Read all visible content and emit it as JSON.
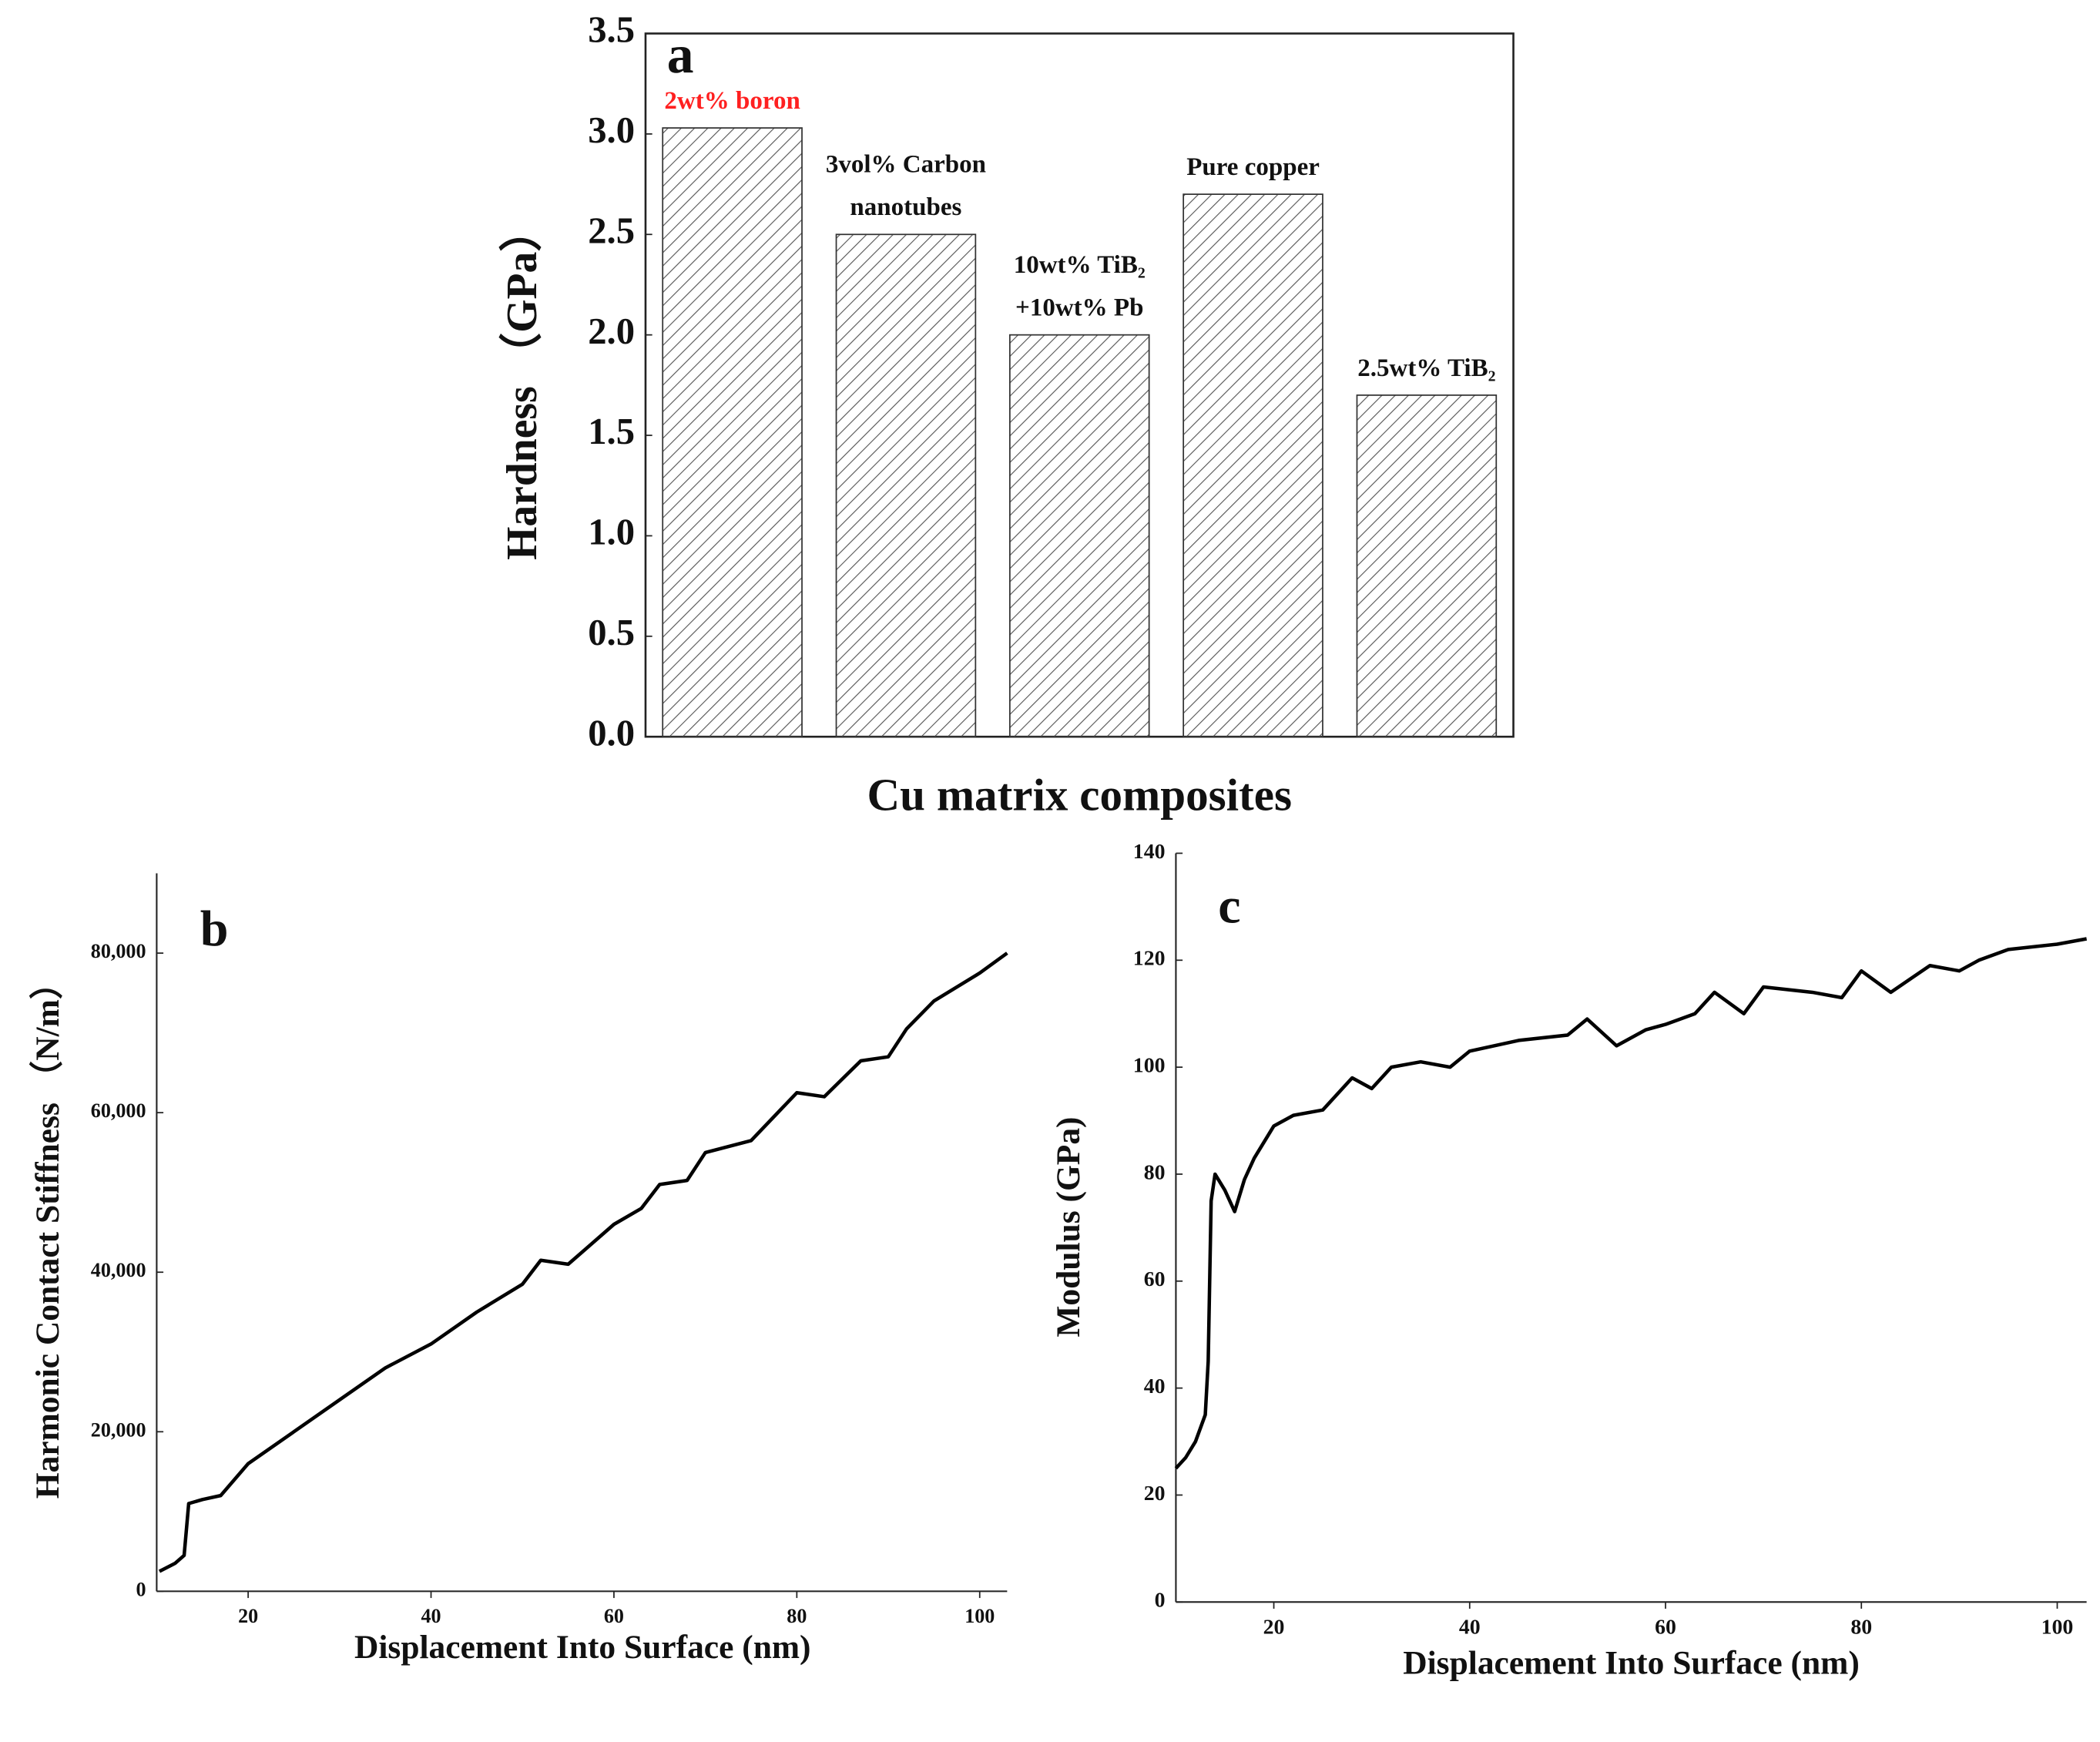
{
  "chart_data": [
    {
      "type": "bar",
      "panel": "a",
      "x_label": "Cu matrix composites",
      "y_label": "Hardness （GPa）",
      "categories": [
        "2wt% boron",
        "3vol% Carbon\nnanotubes",
        "10wt% TiB₂\n+10wt% Pb",
        "Pure copper",
        "2.5wt% TiB₂"
      ],
      "values": [
        3.03,
        2.5,
        2.0,
        2.7,
        1.7
      ],
      "label_colors": [
        "#ff2020",
        "#111111",
        "#111111",
        "#111111",
        "#111111"
      ],
      "color": "#555555",
      "ylim": [
        0,
        3.5
      ],
      "yticks": [
        {
          "value": 0,
          "label": "0.0"
        },
        0.5,
        {
          "value": 1,
          "label": "1.0"
        },
        1.5,
        {
          "value": 2,
          "label": "2.0"
        },
        2.5,
        {
          "value": 3,
          "label": "3.0"
        },
        3.5
      ]
    },
    {
      "type": "line",
      "panel": "b",
      "x_label": "Displacement Into Surface (nm)",
      "y_label": "Harmonic Contact Stiffness （N/m）",
      "color": "#000000",
      "x": [
        10.3,
        12,
        13,
        13.5,
        15,
        17,
        20,
        25,
        30,
        35,
        40,
        45,
        50,
        52,
        55,
        60,
        63,
        65,
        68,
        70,
        75,
        80,
        83,
        87,
        90,
        92,
        95,
        100,
        103
      ],
      "values": [
        2500,
        3500,
        4500,
        11000,
        11500,
        12000,
        16000,
        20000,
        24000,
        28000,
        31000,
        35000,
        38500,
        41500,
        41000,
        46000,
        48000,
        51000,
        51500,
        55000,
        56500,
        62500,
        62000,
        66500,
        67000,
        70500,
        74000,
        77500,
        80000
      ],
      "xlim": [
        10,
        103
      ],
      "xticks": [
        20,
        40,
        60,
        80,
        100
      ],
      "ylim": [
        0,
        90000
      ],
      "yticks": [
        0,
        {
          "value": 20000,
          "label": "20,000"
        },
        {
          "value": 40000,
          "label": "40,000"
        },
        {
          "value": 60000,
          "label": "60,000"
        },
        {
          "value": 80000,
          "label": "80,000"
        }
      ]
    },
    {
      "type": "line",
      "panel": "c",
      "x_label": "Displacement Into Surface (nm)",
      "y_label": "Modulus (GPa)",
      "color": "#000000",
      "x": [
        10,
        11,
        12,
        13,
        13.3,
        13.6,
        14,
        15,
        16,
        17,
        18,
        20,
        22,
        25,
        28,
        30,
        32,
        35,
        38,
        40,
        45,
        50,
        52,
        55,
        58,
        60,
        63,
        65,
        68,
        70,
        75,
        78,
        80,
        83,
        87,
        90,
        92,
        95,
        100,
        103
      ],
      "values": [
        25,
        27,
        30,
        35,
        45,
        75,
        80,
        77,
        73,
        79,
        83,
        89,
        91,
        92,
        98,
        96,
        100,
        101,
        100,
        103,
        105,
        106,
        109,
        104,
        107,
        108,
        110,
        114,
        110,
        115,
        114,
        113,
        118,
        114,
        119,
        118,
        120,
        122,
        123,
        124
      ],
      "xlim": [
        10,
        103
      ],
      "xticks": [
        20,
        40,
        60,
        80,
        100
      ],
      "ylim": [
        0,
        140
      ],
      "yticks": [
        0,
        20,
        40,
        60,
        80,
        100,
        120,
        140
      ]
    }
  ]
}
